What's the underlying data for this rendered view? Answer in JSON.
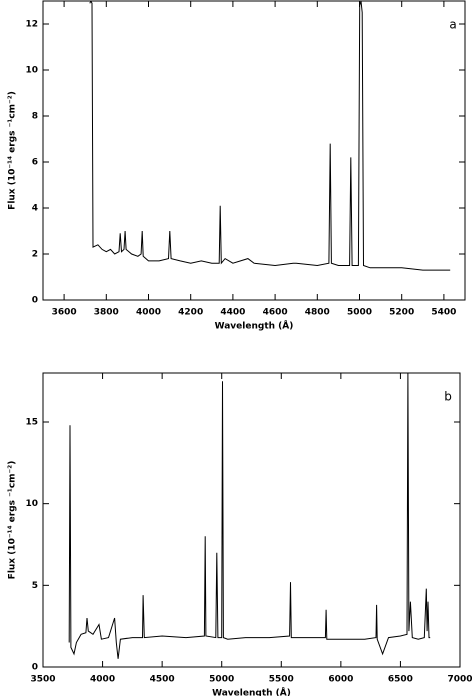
{
  "chart_data": [
    {
      "type": "line",
      "annotation": "a",
      "xlabel": "Wavelength (Å)",
      "ylabel": "Flux (10⁻¹⁴ ergs ⁻¹cm⁻²)",
      "color": "#000000",
      "xlim": [
        3500,
        5500
      ],
      "ylim": [
        0,
        13
      ],
      "xticks": [
        3600,
        3800,
        4000,
        4200,
        4400,
        4600,
        4800,
        5000,
        5200,
        5400
      ],
      "yticks": [
        0,
        2,
        4,
        6,
        8,
        10,
        12
      ],
      "x": [
        3722,
        3727,
        3732,
        3737,
        3760,
        3780,
        3800,
        3820,
        3840,
        3860,
        3866,
        3872,
        3884,
        3889,
        3894,
        3920,
        3950,
        3965,
        3970,
        3975,
        4000,
        4050,
        4095,
        4101,
        4107,
        4150,
        4200,
        4250,
        4300,
        4335,
        4340,
        4345,
        4363,
        4400,
        4471,
        4500,
        4600,
        4686,
        4700,
        4800,
        4855,
        4861,
        4867,
        4900,
        4953,
        4959,
        4965,
        4995,
        5001,
        5007,
        5013,
        5019,
        5050,
        5100,
        5200,
        5300,
        5430
      ],
      "values": [
        12.9,
        13,
        12.9,
        2.3,
        2.4,
        2.2,
        2.1,
        2.2,
        2.0,
        2.1,
        2.9,
        2.1,
        2.2,
        3.0,
        2.2,
        2.0,
        1.9,
        2.0,
        3.0,
        1.9,
        1.7,
        1.7,
        1.8,
        3.0,
        1.8,
        1.7,
        1.6,
        1.7,
        1.6,
        1.6,
        4.1,
        1.6,
        1.8,
        1.6,
        1.8,
        1.6,
        1.5,
        1.6,
        1.6,
        1.5,
        1.6,
        6.8,
        1.6,
        1.5,
        1.5,
        6.2,
        1.5,
        1.5,
        12.8,
        13,
        12.5,
        1.5,
        1.4,
        1.4,
        1.4,
        1.3,
        1.3
      ]
    },
    {
      "type": "line",
      "annotation": "b",
      "xlabel": "Wavelength (Å)",
      "ylabel": "Flux (10⁻¹⁴ ergs ⁻¹cm⁻²)",
      "color": "#000000",
      "xlim": [
        3500,
        7000
      ],
      "ylim": [
        0,
        18
      ],
      "xticks": [
        3500,
        4000,
        4500,
        5000,
        5500,
        6000,
        6500,
        7000
      ],
      "yticks": [
        0,
        5,
        10,
        15
      ],
      "x": [
        3720,
        3727,
        3734,
        3760,
        3780,
        3820,
        3860,
        3869,
        3880,
        3920,
        3970,
        3990,
        4050,
        4101,
        4115,
        4130,
        4150,
        4250,
        4335,
        4340,
        4350,
        4500,
        4700,
        4855,
        4861,
        4867,
        4950,
        4959,
        4968,
        5000,
        5007,
        5014,
        5050,
        5200,
        5400,
        5570,
        5577,
        5584,
        5700,
        5870,
        5876,
        5882,
        6000,
        6200,
        6295,
        6300,
        6305,
        6350,
        6400,
        6500,
        6555,
        6563,
        6571,
        6584,
        6600,
        6650,
        6700,
        6717,
        6724,
        6731,
        6740,
        6750
      ],
      "values": [
        1.5,
        14.8,
        1.2,
        0.8,
        1.5,
        2.0,
        2.1,
        3.0,
        2.2,
        2.0,
        2.6,
        1.7,
        1.8,
        3.0,
        1.5,
        0.5,
        1.7,
        1.8,
        1.8,
        4.4,
        1.8,
        1.9,
        1.8,
        1.9,
        8.0,
        1.9,
        1.8,
        7.0,
        1.8,
        1.8,
        17.5,
        1.8,
        1.7,
        1.8,
        1.8,
        1.9,
        5.2,
        1.8,
        1.8,
        1.8,
        3.5,
        1.7,
        1.7,
        1.7,
        1.8,
        3.8,
        1.7,
        0.8,
        1.8,
        1.9,
        2.0,
        18,
        2.2,
        4.0,
        1.8,
        1.7,
        1.8,
        4.8,
        2.2,
        4.0,
        1.8,
        1.8
      ]
    }
  ]
}
